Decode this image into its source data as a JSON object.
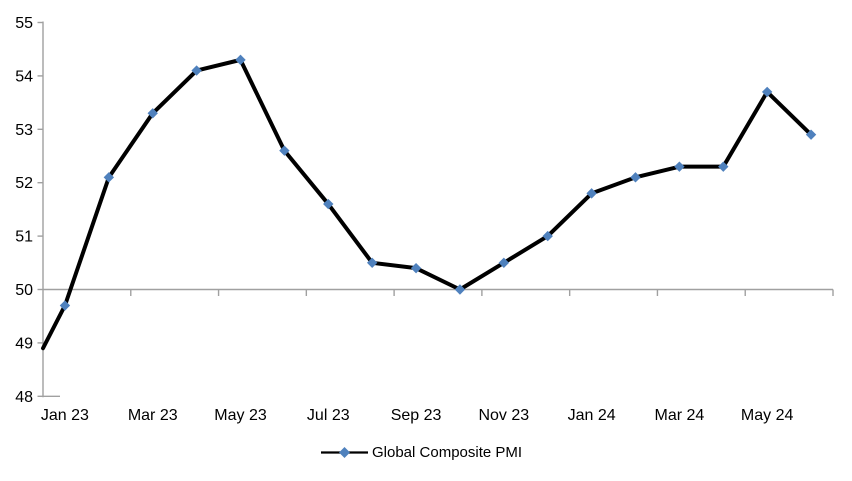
{
  "chart_data": {
    "type": "line",
    "title": "",
    "series": [
      {
        "name": "Global Composite PMI",
        "x": [
          "Jan 23",
          "Feb 23",
          "Mar 23",
          "Apr 23",
          "May 23",
          "Jun 23",
          "Jul 23",
          "Aug 23",
          "Sep 23",
          "Oct 23",
          "Nov 23",
          "Dec 23",
          "Jan 24",
          "Feb 24",
          "Mar 24",
          "Apr 24",
          "May 24",
          "Jun 24"
        ],
        "values": [
          49.7,
          52.1,
          53.3,
          54.1,
          54.3,
          52.6,
          51.6,
          50.5,
          50.4,
          50.0,
          50.5,
          51.0,
          51.8,
          52.1,
          52.3,
          52.3,
          53.7,
          52.9
        ],
        "marker_shape": "diamond"
      }
    ],
    "edge_start_value": 48.9,
    "edge_start_note": "line enters plot at the left value axis at ~48.9 with no marker (partial segment from prior off-plot month)",
    "x_axis": {
      "tick_labels": [
        "Jan 23",
        "Mar 23",
        "May 23",
        "Jul 23",
        "Sep 23",
        "Nov 23",
        "Jan 24",
        "Mar 24",
        "May 24"
      ],
      "category_axis_position_value": 50,
      "tick_interval_months": 2
    },
    "y_axis": {
      "ticks": [
        "55",
        "54",
        "53",
        "52",
        "51",
        "50",
        "49",
        "48"
      ],
      "range": [
        48,
        55
      ]
    },
    "legend": {
      "label": "Global Composite PMI",
      "position": "bottom-center"
    },
    "colors": {
      "line": "#000000",
      "marker": "#4F81BD",
      "axis": "#A0A0A0",
      "text": "#000000",
      "background": "#FFFFFF"
    },
    "grid": "off"
  }
}
